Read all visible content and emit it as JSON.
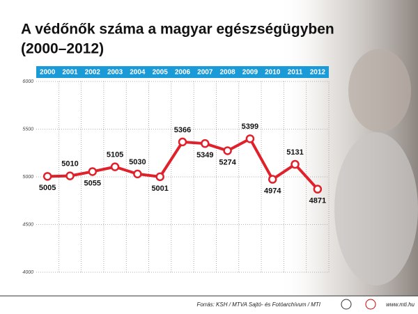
{
  "chart_data": {
    "type": "line",
    "title": "A védőnők száma a magyar egészségügyben",
    "subtitle": "(2000–2012)",
    "categories": [
      "2000",
      "2001",
      "2002",
      "2003",
      "2004",
      "2005",
      "2006",
      "2007",
      "2008",
      "2009",
      "2010",
      "2011",
      "2012"
    ],
    "series": [
      {
        "name": "Védőnők száma",
        "color": "#e0202a",
        "values": [
          5005,
          5010,
          5055,
          5105,
          5030,
          5001,
          5366,
          5349,
          5274,
          5399,
          4974,
          5131,
          4871
        ]
      }
    ],
    "ylim": [
      4000,
      6000
    ],
    "yticks": [
      4000,
      4500,
      5000,
      5500,
      6000
    ],
    "grid": true,
    "source": "Forrás: KSH / MTVA Sajtó- és Fotóarchívum / MTI",
    "website": "www.mti.hu"
  }
}
